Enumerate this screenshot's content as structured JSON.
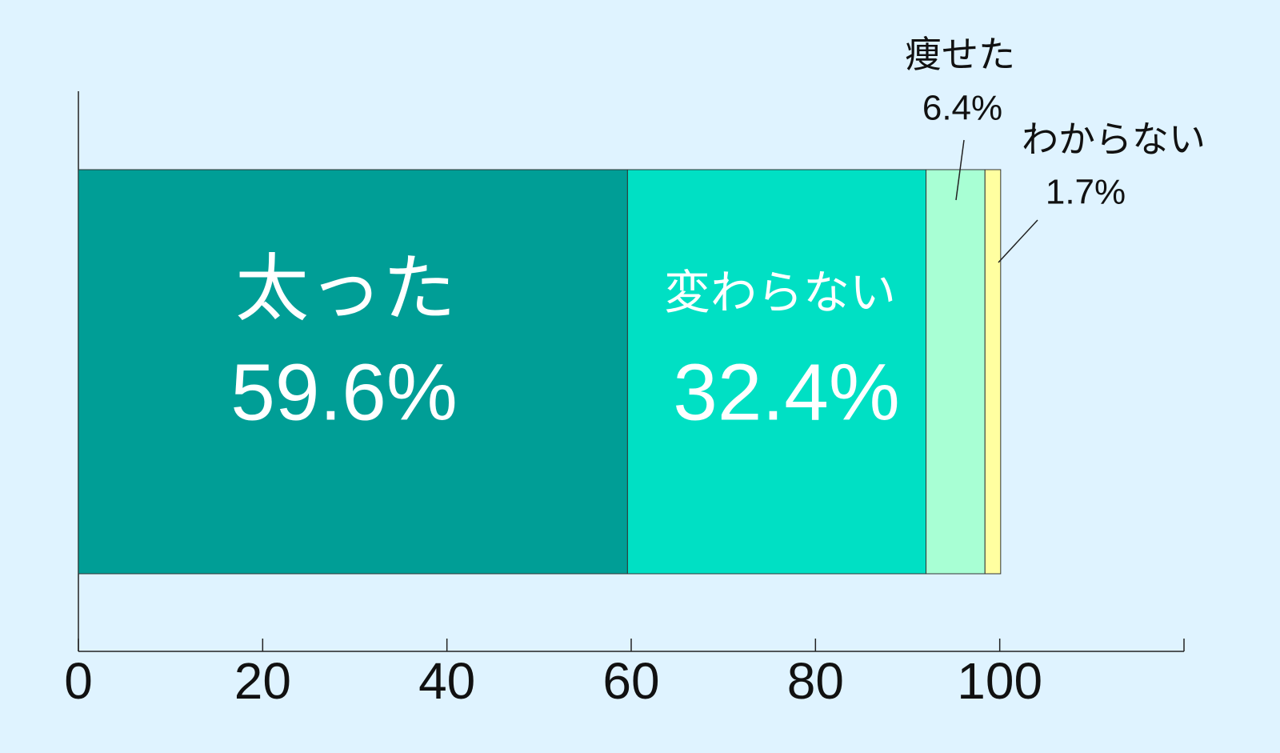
{
  "chart_data": {
    "type": "stacked-bar",
    "series": [
      {
        "name": "太った",
        "color": "#009e96",
        "values": [
          59.6
        ],
        "value_labels": [
          "59.6%"
        ]
      },
      {
        "name": "変わらない",
        "color": "#00e0c4",
        "values": [
          32.4
        ],
        "value_labels": [
          "32.4%"
        ]
      },
      {
        "name": "痩せた",
        "color": "#a8ffd4",
        "values": [
          6.4
        ],
        "value_labels": [
          "6.4%"
        ]
      },
      {
        "name": "わからない",
        "color": "#ffffa0",
        "values": [
          1.7
        ],
        "value_labels": [
          "1.7%"
        ]
      }
    ],
    "xlim": [
      0,
      120
    ],
    "xticks": [
      0,
      20,
      40,
      60,
      80,
      100
    ]
  }
}
